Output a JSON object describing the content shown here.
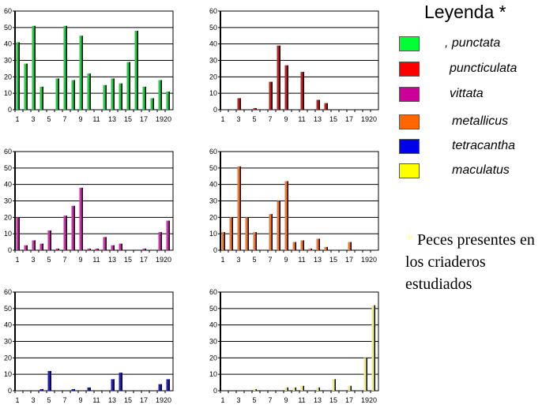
{
  "legend": {
    "title": "Leyenda *",
    "items": [
      {
        "label": ", punctata",
        "color": "#00ff33"
      },
      {
        "label": "puncticulata",
        "color": "#ff0000"
      },
      {
        "label": "vittata",
        "color": "#cc0099"
      },
      {
        "label": "metallicus",
        "color": "#ff6600"
      },
      {
        "label": "tetracantha",
        "color": "#0000ee"
      },
      {
        "label": "maculatus",
        "color": "#ffff00"
      }
    ],
    "note_star": "*",
    "note": "Peces presentes en los criaderos estudiados"
  },
  "chart_data": [
    {
      "type": "bar",
      "species": "punctata",
      "color": "#22cc44",
      "categories": [
        1,
        2,
        3,
        4,
        5,
        6,
        7,
        8,
        9,
        10,
        11,
        12,
        13,
        14,
        15,
        16,
        17,
        18,
        19,
        20
      ],
      "values": [
        41,
        28,
        51,
        14,
        0,
        19,
        51,
        18,
        45,
        22,
        0,
        15,
        19,
        16,
        29,
        48,
        14,
        7,
        18,
        11
      ],
      "ylim": [
        0,
        60
      ],
      "yticks": [
        0,
        10,
        20,
        30,
        40,
        50,
        60
      ],
      "xticklabels": [
        "1",
        "3",
        "5",
        "7",
        "9",
        "11",
        "13",
        "15",
        "17",
        "19",
        "20"
      ],
      "grid": true
    },
    {
      "type": "bar",
      "species": "puncticulata",
      "color": "#bb2222",
      "categories": [
        1,
        2,
        3,
        4,
        5,
        6,
        7,
        8,
        9,
        10,
        11,
        12,
        13,
        14,
        15,
        16,
        17,
        18,
        19,
        20
      ],
      "values": [
        0,
        0,
        7,
        0,
        1,
        0,
        17,
        39,
        27,
        0,
        23,
        0,
        6,
        4,
        0,
        0,
        0,
        0,
        0,
        0
      ],
      "ylim": [
        0,
        60
      ],
      "yticks": [
        0,
        10,
        20,
        30,
        40,
        50,
        60
      ],
      "xticklabels": [
        "1",
        "3",
        "5",
        "7",
        "9",
        "11",
        "13",
        "15",
        "17",
        "19",
        "20"
      ],
      "grid": true
    },
    {
      "type": "bar",
      "species": "vittata",
      "color": "#cc33aa",
      "categories": [
        1,
        2,
        3,
        4,
        5,
        6,
        7,
        8,
        9,
        10,
        11,
        12,
        13,
        14,
        15,
        16,
        17,
        18,
        19,
        20
      ],
      "values": [
        20,
        3,
        6,
        4,
        12,
        1,
        21,
        27,
        38,
        1,
        1,
        8,
        3,
        4,
        0,
        0,
        1,
        0,
        11,
        18
      ],
      "ylim": [
        0,
        60
      ],
      "yticks": [
        0,
        10,
        20,
        30,
        40,
        50,
        60
      ],
      "xticklabels": [
        "1",
        "3",
        "5",
        "7",
        "9",
        "11",
        "13",
        "15",
        "17",
        "19",
        "20"
      ],
      "grid": true
    },
    {
      "type": "bar",
      "species": "metallicus",
      "color": "#ee7733",
      "categories": [
        1,
        2,
        3,
        4,
        5,
        6,
        7,
        8,
        9,
        10,
        11,
        12,
        13,
        14,
        15,
        16,
        17,
        18,
        19,
        20
      ],
      "values": [
        11,
        20,
        51,
        20,
        11,
        0,
        22,
        30,
        42,
        5,
        6,
        1,
        7,
        2,
        0,
        0,
        5,
        0,
        0,
        0
      ],
      "ylim": [
        0,
        60
      ],
      "yticks": [
        0,
        10,
        20,
        30,
        40,
        50,
        60
      ],
      "xticklabels": [
        "1",
        "3",
        "5",
        "7",
        "9",
        "11",
        "13",
        "15",
        "17",
        "19",
        "20"
      ],
      "grid": true
    },
    {
      "type": "bar",
      "species": "tetracantha",
      "color": "#2222bb",
      "categories": [
        1,
        2,
        3,
        4,
        5,
        6,
        7,
        8,
        9,
        10,
        11,
        12,
        13,
        14,
        15,
        16,
        17,
        18,
        19,
        20
      ],
      "values": [
        0,
        0,
        0,
        1,
        12,
        0,
        0,
        1,
        0,
        2,
        0,
        0,
        7,
        11,
        0,
        0,
        0,
        0,
        4,
        7
      ],
      "ylim": [
        0,
        60
      ],
      "yticks": [
        0,
        10,
        20,
        30,
        40,
        50,
        60
      ],
      "xticklabels": [
        "1",
        "3",
        "5",
        "7",
        "9",
        "11",
        "13",
        "15",
        "17",
        "19",
        "20"
      ],
      "grid": true
    },
    {
      "type": "bar",
      "species": "maculatus",
      "color": "#eeee88",
      "categories": [
        1,
        2,
        3,
        4,
        5,
        6,
        7,
        8,
        9,
        10,
        11,
        12,
        13,
        14,
        15,
        16,
        17,
        18,
        19,
        20
      ],
      "values": [
        0,
        0,
        0,
        0,
        1,
        0,
        0,
        0,
        2,
        2,
        3,
        0,
        2,
        0,
        7,
        0,
        3,
        0,
        20,
        52
      ],
      "ylim": [
        0,
        60
      ],
      "yticks": [
        0,
        10,
        20,
        30,
        40,
        50,
        60
      ],
      "xticklabels": [
        "1",
        "3",
        "5",
        "7",
        "9",
        "11",
        "13",
        "15",
        "17",
        "19",
        "20"
      ],
      "grid": true
    }
  ]
}
